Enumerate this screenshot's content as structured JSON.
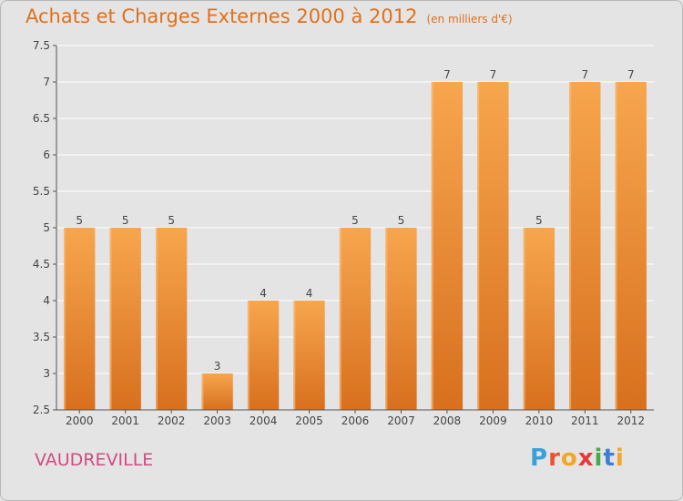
{
  "header": {
    "title": "Achats et Charges Externes 2000 à 2012",
    "subtitle": "(en milliers d'€)"
  },
  "footer": {
    "town": "VAUDREVILLE",
    "logo_letters": [
      "P",
      "r",
      "o",
      "x",
      "i",
      "t",
      "i"
    ],
    "logo_colors": [
      "#3aa0d8",
      "#e8552e",
      "#f2a623",
      "#e23a3a",
      "#4aa84a",
      "#3a7ed8",
      "#f2a623"
    ]
  },
  "chart_data": {
    "type": "bar",
    "title": "Achats et Charges Externes 2000 à 2012",
    "subtitle": "(en milliers d'€)",
    "categories": [
      "2000",
      "2001",
      "2002",
      "2003",
      "2004",
      "2005",
      "2006",
      "2007",
      "2008",
      "2009",
      "2010",
      "2011",
      "2012"
    ],
    "values": [
      5,
      5,
      5,
      3,
      4,
      4,
      5,
      5,
      7,
      7,
      5,
      7,
      7
    ],
    "data_labels": [
      "5",
      "5",
      "5",
      "3",
      "4",
      "4",
      "5",
      "5",
      "7",
      "7",
      "5",
      "7",
      "7"
    ],
    "ylim": [
      2.5,
      7.5
    ],
    "yticks": [
      "2.5",
      "3",
      "3.5",
      "4",
      "4.5",
      "5",
      "5.5",
      "6",
      "6.5",
      "7",
      "7.5"
    ],
    "xlabel": "",
    "ylabel": "",
    "grid": true,
    "colors": {
      "bar_top": "#f7a64e",
      "bar_bottom": "#d8701e",
      "grid": "#ffffff",
      "axis": "#555555",
      "text": "#444444"
    }
  }
}
